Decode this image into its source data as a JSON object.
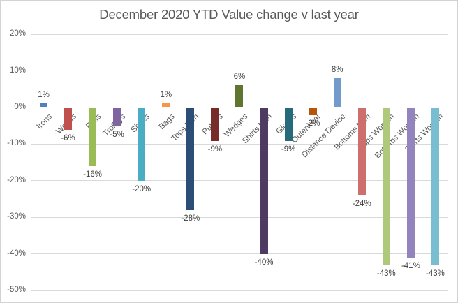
{
  "chart_data": {
    "type": "bar",
    "title": "December 2020 YTD Value change v last year",
    "categories": [
      "Irons",
      "Woods",
      "Balls",
      "Trolleys",
      "Shoes",
      "Bags",
      "Tops Men",
      "Putters",
      "Wedges",
      "Shirts Men",
      "Gloves",
      "Outerwear",
      "Distance Device",
      "Bottoms Men",
      "Tops Women",
      "Bottoms Women",
      "Shirts Women"
    ],
    "values": [
      1,
      -6,
      -16,
      -5,
      -20,
      1,
      -28,
      -9,
      6,
      -40,
      -9,
      -2,
      8,
      -24,
      -43,
      -41,
      -43
    ],
    "data_labels": [
      "1%",
      "-6%",
      "-16%",
      "-5%",
      "-20%",
      "1%",
      "-28%",
      "-9%",
      "6%",
      "-40%",
      "-9%",
      "-2%",
      "8%",
      "-24%",
      "-43%",
      "-41%",
      "-43%"
    ],
    "bar_colors": [
      "#4F81BD",
      "#C0504D",
      "#9BBB59",
      "#8064A2",
      "#4BACC6",
      "#F79646",
      "#2C4D75",
      "#772C2A",
      "#5F7530",
      "#4D3B62",
      "#276A7C",
      "#B65708",
      "#729ACA",
      "#CD6F6C",
      "#AFC97A",
      "#9384BE",
      "#79BDD1"
    ],
    "xlabel": "",
    "ylabel": "",
    "y_axis": {
      "ticks": [
        "20%",
        "10%",
        "0%",
        "-10%",
        "-20%",
        "-30%",
        "-40%",
        "-50%"
      ],
      "tick_values": [
        20,
        10,
        0,
        -10,
        -20,
        -30,
        -40,
        -50
      ],
      "min": -50,
      "max": 20
    },
    "gridlines": true,
    "legend": "none",
    "colors": {
      "grid": "#d9d9d9",
      "zero_axis": "#c6c6c6",
      "title_text": "#595959",
      "axis_text": "#595959",
      "data_label_text": "#3f3f3f",
      "background": "#ffffff",
      "border": "#d3d3d3"
    }
  }
}
